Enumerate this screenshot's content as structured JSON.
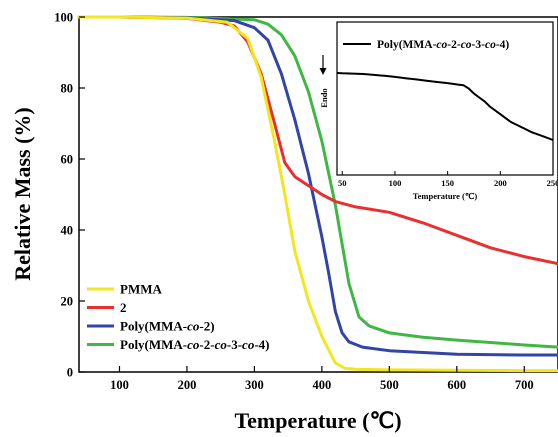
{
  "chart_data": [
    {
      "type": "line",
      "title": "",
      "xlabel": "Temperature (℃)",
      "ylabel": "Relative Mass (%)",
      "xlim": [
        40,
        750
      ],
      "ylim": [
        0,
        100
      ],
      "xticks": [
        100,
        200,
        300,
        400,
        500,
        600,
        700
      ],
      "yticks": [
        0,
        20,
        40,
        60,
        80,
        100
      ],
      "legend_position": "bottom-left",
      "grid": false,
      "series": [
        {
          "name": "PMMA",
          "color": "#f2e61e",
          "x": [
            40,
            100,
            200,
            260,
            290,
            310,
            330,
            345,
            360,
            380,
            400,
            420,
            435,
            450,
            500,
            600,
            700,
            750
          ],
          "y": [
            100,
            100,
            99.7,
            98.5,
            94,
            83,
            65,
            50,
            34,
            20,
            10,
            2.5,
            1,
            0.8,
            0.6,
            0.5,
            0.4,
            0.4
          ]
        },
        {
          "name": "2",
          "color": "#e8302f",
          "x": [
            40,
            100,
            200,
            250,
            270,
            290,
            310,
            330,
            345,
            360,
            380,
            400,
            420,
            450,
            500,
            550,
            600,
            650,
            700,
            750
          ],
          "y": [
            100,
            100,
            99.6,
            98.5,
            97.5,
            93,
            84,
            70,
            59,
            55,
            52.5,
            50,
            48,
            46.5,
            45,
            42,
            38.5,
            35,
            32.5,
            30.5
          ]
        },
        {
          "name": "Poly(MMA-co-2)",
          "color": "#3244a8",
          "x": [
            40,
            100,
            200,
            270,
            300,
            320,
            340,
            360,
            380,
            400,
            410,
            420,
            430,
            440,
            460,
            500,
            600,
            700,
            750
          ],
          "y": [
            100,
            100,
            99.8,
            99,
            97,
            93.5,
            84,
            71,
            56,
            38,
            28,
            17,
            11,
            8.5,
            7,
            6,
            5,
            4.8,
            4.8
          ]
        },
        {
          "name": "Poly(MMA-co-2-co-3-co-4)",
          "color": "#3fb743",
          "x": [
            40,
            100,
            200,
            300,
            320,
            340,
            360,
            380,
            400,
            420,
            440,
            455,
            470,
            500,
            550,
            600,
            650,
            700,
            750
          ],
          "y": [
            100,
            100,
            99.9,
            99.2,
            98,
            95,
            89,
            79,
            65,
            47,
            25,
            15.5,
            13,
            11,
            9.8,
            9,
            8.3,
            7.6,
            7
          ]
        }
      ]
    },
    {
      "type": "line",
      "title": "",
      "xlabel": "Temperature (℃)",
      "ylabel": "Endo",
      "xlim": [
        45,
        250
      ],
      "xticks": [
        50,
        100,
        150,
        200,
        250
      ],
      "yticks": [],
      "legend_position": "top",
      "series": [
        {
          "name": "Poly(MMA-co-2-co-3-co-4)",
          "color": "#000000",
          "x": [
            45,
            50,
            60,
            70,
            80,
            90,
            100,
            110,
            120,
            130,
            140,
            150,
            160,
            165,
            170,
            175,
            180,
            185,
            190,
            200,
            210,
            220,
            230,
            240,
            250
          ],
          "y": [
            0.82,
            0.818,
            0.815,
            0.812,
            0.805,
            0.798,
            0.79,
            0.78,
            0.77,
            0.76,
            0.75,
            0.742,
            0.73,
            0.725,
            0.7,
            0.66,
            0.63,
            0.6,
            0.56,
            0.5,
            0.44,
            0.4,
            0.36,
            0.33,
            0.3
          ]
        }
      ]
    }
  ]
}
